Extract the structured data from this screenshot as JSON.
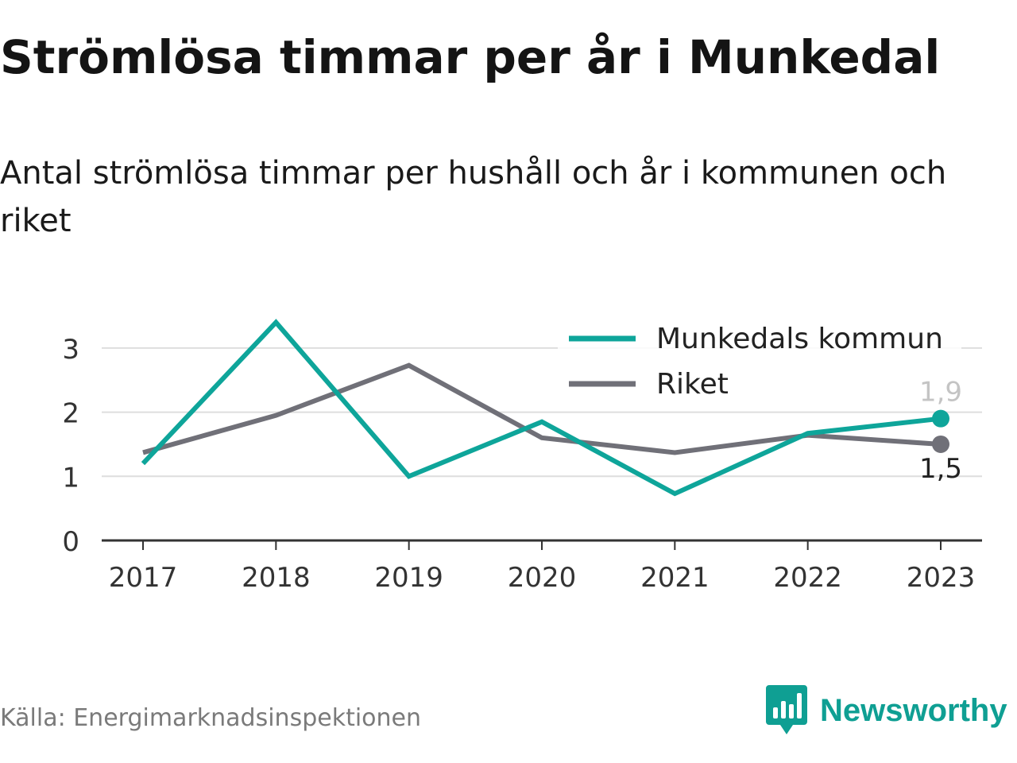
{
  "brand": {
    "name": "Newsworthy",
    "color": "#0f9f93"
  },
  "footer": {
    "source": "Källa: Energimarknadsinspektionen"
  },
  "chart_data": {
    "type": "line",
    "title": "Strömlösa timmar per år i Munkedal",
    "subtitle": "Antal strömlösa timmar per hushåll och år i kommunen och riket",
    "x": [
      "2017",
      "2018",
      "2019",
      "2020",
      "2021",
      "2022",
      "2023"
    ],
    "ylim": [
      0,
      3.3
    ],
    "yticks": [
      0,
      1,
      2,
      3
    ],
    "grid": true,
    "legend_position": "top-right",
    "series": [
      {
        "name": "Munkedals kommun",
        "color": "#0ea59a",
        "values": [
          1.2,
          3.4,
          1.0,
          1.85,
          0.73,
          1.67,
          1.9
        ],
        "end_label": "1,9"
      },
      {
        "name": "Riket",
        "color": "#707078",
        "values": [
          1.37,
          1.95,
          2.73,
          1.6,
          1.37,
          1.64,
          1.5
        ],
        "end_label": "1,5"
      }
    ]
  }
}
